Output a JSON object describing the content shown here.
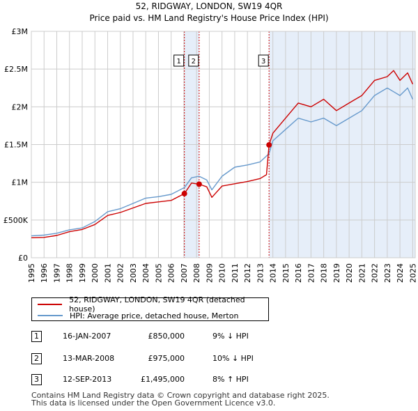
{
  "title": "52, RIDGWAY, LONDON, SW19 4QR",
  "subtitle": "Price paid vs. HM Land Registry's House Price Index (HPI)",
  "legend": {
    "property": "52, RIDGWAY, LONDON, SW19 4QR (detached house)",
    "hpi": "HPI: Average price, detached house, Merton"
  },
  "colors": {
    "property": "#cc0000",
    "hpi": "#6699cc",
    "shade": "#e6eef9",
    "vline": "#cc0000"
  },
  "sales": [
    {
      "num": "1",
      "date": "16-JAN-2007",
      "price": "£850,000",
      "hpi": "9% ↓ HPI"
    },
    {
      "num": "2",
      "date": "13-MAR-2008",
      "price": "£975,000",
      "hpi": "10% ↓ HPI"
    },
    {
      "num": "3",
      "date": "12-SEP-2013",
      "price": "£1,495,000",
      "hpi": "8% ↑ HPI"
    }
  ],
  "footer": {
    "line1": "Contains HM Land Registry data © Crown copyright and database right 2025.",
    "line2": "This data is licensed under the Open Government Licence v3.0."
  },
  "chart_data": {
    "type": "line",
    "xlim": [
      1995,
      2025.2
    ],
    "ylim": [
      0,
      3000000
    ],
    "x_ticks": [
      "1995",
      "1996",
      "1997",
      "1998",
      "1999",
      "2000",
      "2001",
      "2002",
      "2003",
      "2004",
      "2005",
      "2006",
      "2007",
      "2008",
      "2009",
      "2010",
      "2011",
      "2012",
      "2013",
      "2014",
      "2015",
      "2016",
      "2017",
      "2018",
      "2019",
      "2020",
      "2021",
      "2022",
      "2023",
      "2024",
      "2025"
    ],
    "y_ticks": [
      {
        "value": 0,
        "label": "£0"
      },
      {
        "value": 500000,
        "label": "£500K"
      },
      {
        "value": 1000000,
        "label": "£1M"
      },
      {
        "value": 1500000,
        "label": "£1.5M"
      },
      {
        "value": 2000000,
        "label": "£2M"
      },
      {
        "value": 2500000,
        "label": "£2.5M"
      },
      {
        "value": 3000000,
        "label": "£3M"
      }
    ],
    "shaded_ranges": [
      [
        2007.04,
        2008.2
      ],
      [
        2013.7,
        2025.2
      ]
    ],
    "markers": [
      {
        "label": "1",
        "x": 2007.04,
        "y": 850000
      },
      {
        "label": "2",
        "x": 2008.2,
        "y": 975000
      },
      {
        "label": "3",
        "x": 2013.7,
        "y": 1495000
      }
    ],
    "series": [
      {
        "name": "52, RIDGWAY, LONDON, SW19 4QR (detached house)",
        "x": [
          1995,
          1996,
          1997,
          1998,
          1999,
          2000,
          2001,
          2002,
          2003,
          2004,
          2005,
          2006,
          2007.04,
          2007.6,
          2008.2,
          2008.8,
          2009.2,
          2010,
          2011,
          2012,
          2013,
          2013.5,
          2013.7,
          2014,
          2015,
          2016,
          2017,
          2018,
          2019,
          2020,
          2021,
          2022,
          2023,
          2023.5,
          2024,
          2024.6,
          2025
        ],
        "values": [
          265000,
          270000,
          295000,
          345000,
          375000,
          440000,
          560000,
          600000,
          660000,
          720000,
          740000,
          760000,
          850000,
          990000,
          975000,
          940000,
          800000,
          950000,
          980000,
          1010000,
          1050000,
          1100000,
          1495000,
          1650000,
          1850000,
          2050000,
          2000000,
          2100000,
          1950000,
          2050000,
          2150000,
          2350000,
          2400000,
          2480000,
          2350000,
          2450000,
          2300000
        ]
      },
      {
        "name": "HPI: Average price, detached house, Merton",
        "x": [
          1995,
          1996,
          1997,
          1998,
          1999,
          2000,
          2001,
          2002,
          2003,
          2004,
          2005,
          2006,
          2007.04,
          2007.6,
          2008.2,
          2008.8,
          2009.2,
          2010,
          2011,
          2012,
          2013,
          2013.7,
          2014,
          2015,
          2016,
          2017,
          2018,
          2019,
          2020,
          2021,
          2022,
          2023,
          2023.5,
          2024,
          2024.6,
          2025
        ],
        "values": [
          290000,
          300000,
          325000,
          370000,
          395000,
          480000,
          610000,
          650000,
          720000,
          790000,
          810000,
          840000,
          930000,
          1060000,
          1080000,
          1030000,
          900000,
          1080000,
          1200000,
          1230000,
          1270000,
          1380000,
          1550000,
          1700000,
          1850000,
          1800000,
          1850000,
          1750000,
          1850000,
          1950000,
          2150000,
          2250000,
          2200000,
          2150000,
          2250000,
          2100000
        ]
      }
    ]
  }
}
